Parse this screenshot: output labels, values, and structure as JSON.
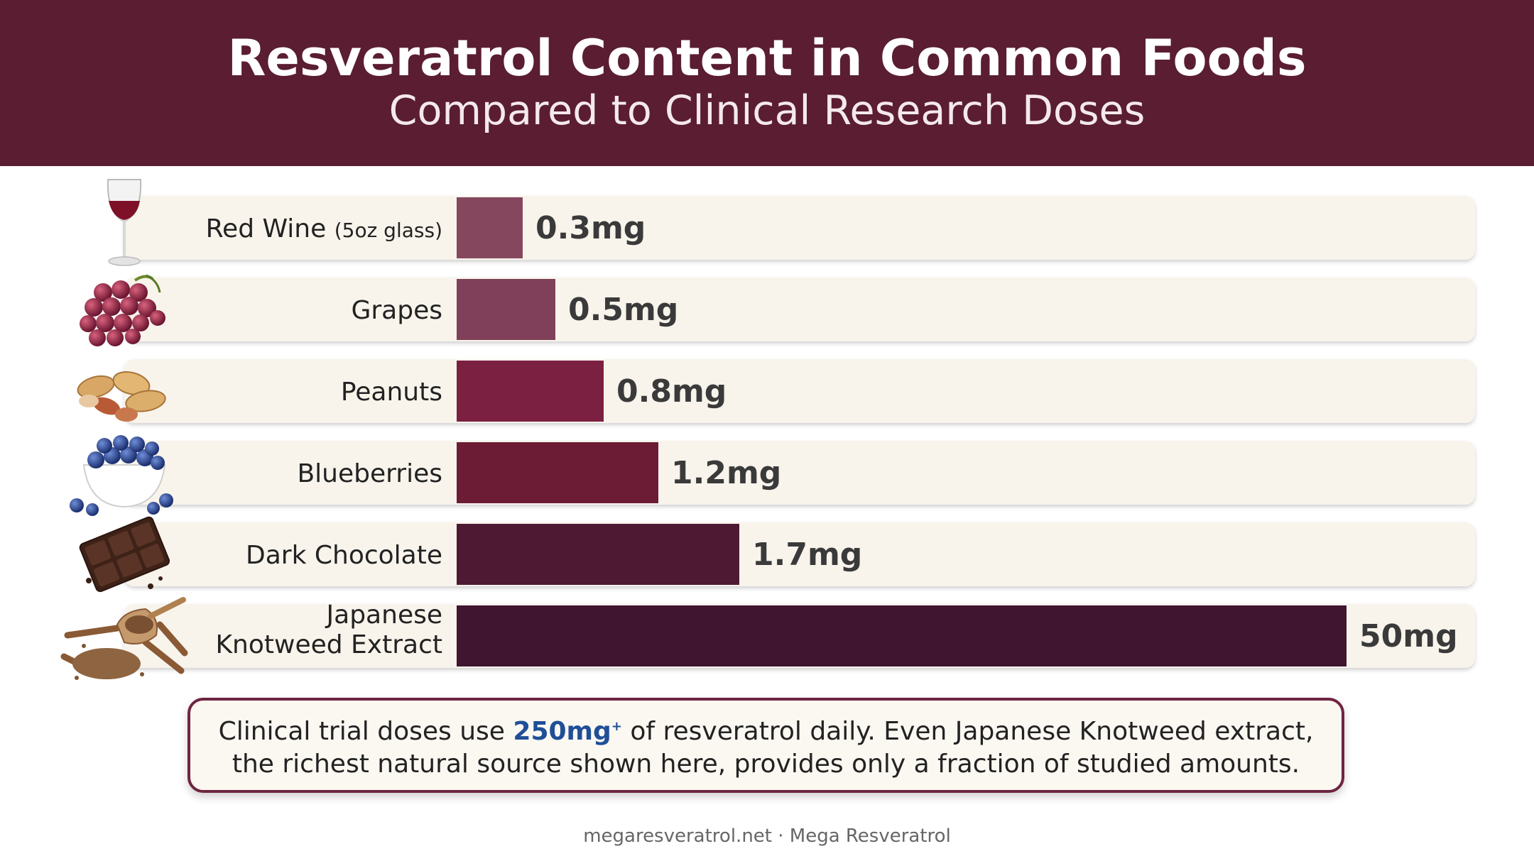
{
  "header": {
    "title": "Resveratrol Content in Common Foods",
    "subtitle": "Compared to Clinical Research Doses"
  },
  "chart_data": {
    "type": "bar",
    "orientation": "horizontal",
    "unit": "mg",
    "items": [
      {
        "label": "Red Wine",
        "label_note": "(5oz glass)",
        "value": 0.3,
        "value_label": "0.3mg",
        "color": "#84475e",
        "icon": "red-wine-glass-icon"
      },
      {
        "label": "Grapes",
        "value": 0.5,
        "value_label": "0.5mg",
        "color": "#80405a",
        "icon": "grapes-icon"
      },
      {
        "label": "Peanuts",
        "value": 0.8,
        "value_label": "0.8mg",
        "color": "#7b2040",
        "icon": "peanuts-icon"
      },
      {
        "label": "Blueberries",
        "value": 1.2,
        "value_label": "1.2mg",
        "color": "#6d1c36",
        "icon": "blueberries-bowl-icon"
      },
      {
        "label": "Dark Chocolate",
        "value": 1.7,
        "value_label": "1.7mg",
        "color": "#4e1a33",
        "icon": "dark-chocolate-icon"
      },
      {
        "label": "Japanese Knotweed Extract",
        "label_lines": [
          "Japanese",
          "Knotweed Extract"
        ],
        "value": 50,
        "value_label": "50mg",
        "color": "#3f1530",
        "icon": "knotweed-root-powder-icon"
      }
    ],
    "scale": "non-linear (bars not drawn to scale)"
  },
  "callout": {
    "line1_before": "Clinical trial doses use ",
    "dose": "250mg",
    "dose_mark": "+",
    "line1_after": " of resveratrol daily. Even Japanese Knotweed extract,",
    "line2": "the richest natural source shown here, provides only a fraction of studied amounts."
  },
  "footer": {
    "text": "megaresveratrol.net · Mega Resveratrol"
  }
}
